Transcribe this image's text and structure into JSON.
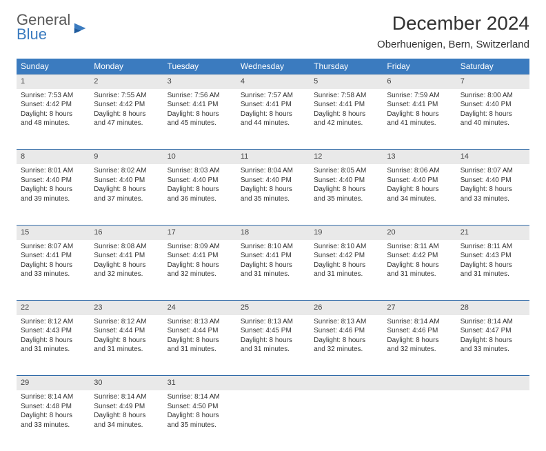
{
  "logo": {
    "line1": "General",
    "line2": "Blue"
  },
  "title": "December 2024",
  "location": "Oberhuenigen, Bern, Switzerland",
  "colors": {
    "header_bg": "#3b7bbf",
    "header_text": "#ffffff",
    "daynum_bg": "#e9e9e9",
    "row_border": "#2f6aa8",
    "text": "#333333",
    "logo_gray": "#5a5a5a",
    "logo_blue": "#3b7bbf",
    "page_bg": "#ffffff"
  },
  "weekdays": [
    "Sunday",
    "Monday",
    "Tuesday",
    "Wednesday",
    "Thursday",
    "Friday",
    "Saturday"
  ],
  "weeks": [
    {
      "nums": [
        "1",
        "2",
        "3",
        "4",
        "5",
        "6",
        "7"
      ],
      "cells": [
        {
          "sunrise": "Sunrise: 7:53 AM",
          "sunset": "Sunset: 4:42 PM",
          "day1": "Daylight: 8 hours",
          "day2": "and 48 minutes."
        },
        {
          "sunrise": "Sunrise: 7:55 AM",
          "sunset": "Sunset: 4:42 PM",
          "day1": "Daylight: 8 hours",
          "day2": "and 47 minutes."
        },
        {
          "sunrise": "Sunrise: 7:56 AM",
          "sunset": "Sunset: 4:41 PM",
          "day1": "Daylight: 8 hours",
          "day2": "and 45 minutes."
        },
        {
          "sunrise": "Sunrise: 7:57 AM",
          "sunset": "Sunset: 4:41 PM",
          "day1": "Daylight: 8 hours",
          "day2": "and 44 minutes."
        },
        {
          "sunrise": "Sunrise: 7:58 AM",
          "sunset": "Sunset: 4:41 PM",
          "day1": "Daylight: 8 hours",
          "day2": "and 42 minutes."
        },
        {
          "sunrise": "Sunrise: 7:59 AM",
          "sunset": "Sunset: 4:41 PM",
          "day1": "Daylight: 8 hours",
          "day2": "and 41 minutes."
        },
        {
          "sunrise": "Sunrise: 8:00 AM",
          "sunset": "Sunset: 4:40 PM",
          "day1": "Daylight: 8 hours",
          "day2": "and 40 minutes."
        }
      ]
    },
    {
      "nums": [
        "8",
        "9",
        "10",
        "11",
        "12",
        "13",
        "14"
      ],
      "cells": [
        {
          "sunrise": "Sunrise: 8:01 AM",
          "sunset": "Sunset: 4:40 PM",
          "day1": "Daylight: 8 hours",
          "day2": "and 39 minutes."
        },
        {
          "sunrise": "Sunrise: 8:02 AM",
          "sunset": "Sunset: 4:40 PM",
          "day1": "Daylight: 8 hours",
          "day2": "and 37 minutes."
        },
        {
          "sunrise": "Sunrise: 8:03 AM",
          "sunset": "Sunset: 4:40 PM",
          "day1": "Daylight: 8 hours",
          "day2": "and 36 minutes."
        },
        {
          "sunrise": "Sunrise: 8:04 AM",
          "sunset": "Sunset: 4:40 PM",
          "day1": "Daylight: 8 hours",
          "day2": "and 35 minutes."
        },
        {
          "sunrise": "Sunrise: 8:05 AM",
          "sunset": "Sunset: 4:40 PM",
          "day1": "Daylight: 8 hours",
          "day2": "and 35 minutes."
        },
        {
          "sunrise": "Sunrise: 8:06 AM",
          "sunset": "Sunset: 4:40 PM",
          "day1": "Daylight: 8 hours",
          "day2": "and 34 minutes."
        },
        {
          "sunrise": "Sunrise: 8:07 AM",
          "sunset": "Sunset: 4:40 PM",
          "day1": "Daylight: 8 hours",
          "day2": "and 33 minutes."
        }
      ]
    },
    {
      "nums": [
        "15",
        "16",
        "17",
        "18",
        "19",
        "20",
        "21"
      ],
      "cells": [
        {
          "sunrise": "Sunrise: 8:07 AM",
          "sunset": "Sunset: 4:41 PM",
          "day1": "Daylight: 8 hours",
          "day2": "and 33 minutes."
        },
        {
          "sunrise": "Sunrise: 8:08 AM",
          "sunset": "Sunset: 4:41 PM",
          "day1": "Daylight: 8 hours",
          "day2": "and 32 minutes."
        },
        {
          "sunrise": "Sunrise: 8:09 AM",
          "sunset": "Sunset: 4:41 PM",
          "day1": "Daylight: 8 hours",
          "day2": "and 32 minutes."
        },
        {
          "sunrise": "Sunrise: 8:10 AM",
          "sunset": "Sunset: 4:41 PM",
          "day1": "Daylight: 8 hours",
          "day2": "and 31 minutes."
        },
        {
          "sunrise": "Sunrise: 8:10 AM",
          "sunset": "Sunset: 4:42 PM",
          "day1": "Daylight: 8 hours",
          "day2": "and 31 minutes."
        },
        {
          "sunrise": "Sunrise: 8:11 AM",
          "sunset": "Sunset: 4:42 PM",
          "day1": "Daylight: 8 hours",
          "day2": "and 31 minutes."
        },
        {
          "sunrise": "Sunrise: 8:11 AM",
          "sunset": "Sunset: 4:43 PM",
          "day1": "Daylight: 8 hours",
          "day2": "and 31 minutes."
        }
      ]
    },
    {
      "nums": [
        "22",
        "23",
        "24",
        "25",
        "26",
        "27",
        "28"
      ],
      "cells": [
        {
          "sunrise": "Sunrise: 8:12 AM",
          "sunset": "Sunset: 4:43 PM",
          "day1": "Daylight: 8 hours",
          "day2": "and 31 minutes."
        },
        {
          "sunrise": "Sunrise: 8:12 AM",
          "sunset": "Sunset: 4:44 PM",
          "day1": "Daylight: 8 hours",
          "day2": "and 31 minutes."
        },
        {
          "sunrise": "Sunrise: 8:13 AM",
          "sunset": "Sunset: 4:44 PM",
          "day1": "Daylight: 8 hours",
          "day2": "and 31 minutes."
        },
        {
          "sunrise": "Sunrise: 8:13 AM",
          "sunset": "Sunset: 4:45 PM",
          "day1": "Daylight: 8 hours",
          "day2": "and 31 minutes."
        },
        {
          "sunrise": "Sunrise: 8:13 AM",
          "sunset": "Sunset: 4:46 PM",
          "day1": "Daylight: 8 hours",
          "day2": "and 32 minutes."
        },
        {
          "sunrise": "Sunrise: 8:14 AM",
          "sunset": "Sunset: 4:46 PM",
          "day1": "Daylight: 8 hours",
          "day2": "and 32 minutes."
        },
        {
          "sunrise": "Sunrise: 8:14 AM",
          "sunset": "Sunset: 4:47 PM",
          "day1": "Daylight: 8 hours",
          "day2": "and 33 minutes."
        }
      ]
    },
    {
      "nums": [
        "29",
        "30",
        "31",
        "",
        "",
        "",
        ""
      ],
      "cells": [
        {
          "sunrise": "Sunrise: 8:14 AM",
          "sunset": "Sunset: 4:48 PM",
          "day1": "Daylight: 8 hours",
          "day2": "and 33 minutes."
        },
        {
          "sunrise": "Sunrise: 8:14 AM",
          "sunset": "Sunset: 4:49 PM",
          "day1": "Daylight: 8 hours",
          "day2": "and 34 minutes."
        },
        {
          "sunrise": "Sunrise: 8:14 AM",
          "sunset": "Sunset: 4:50 PM",
          "day1": "Daylight: 8 hours",
          "day2": "and 35 minutes."
        },
        null,
        null,
        null,
        null
      ]
    }
  ]
}
